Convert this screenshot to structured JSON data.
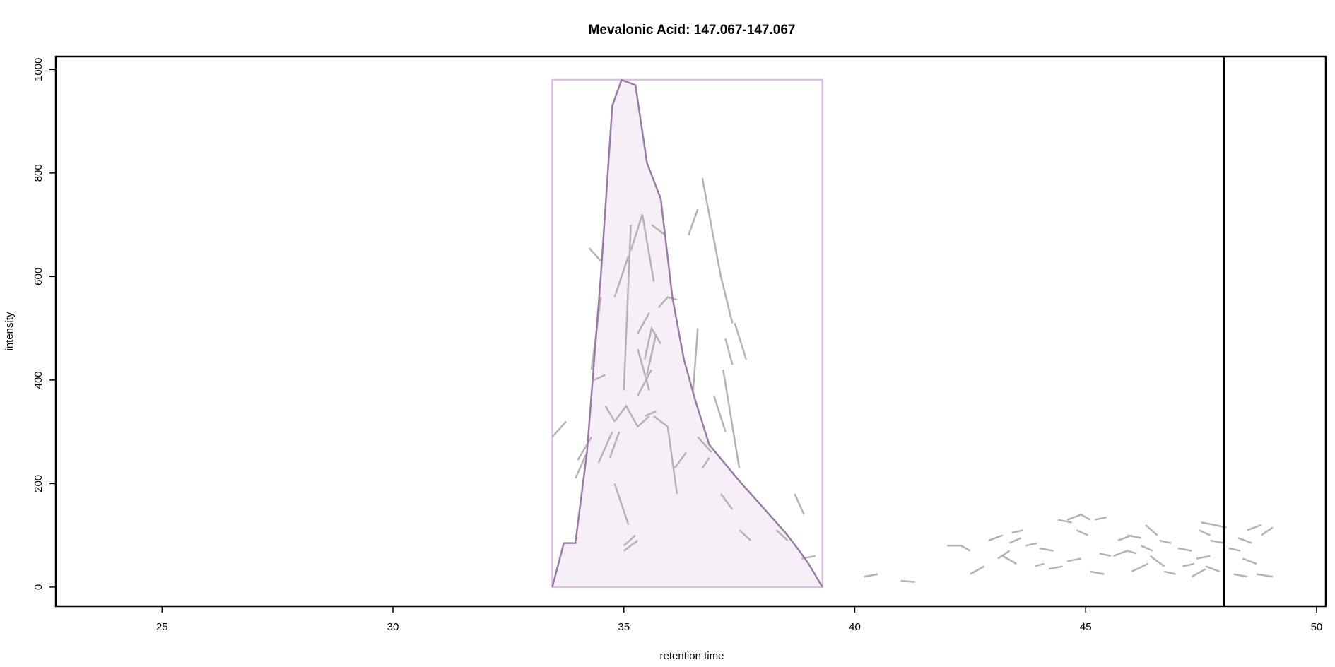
{
  "chart_data": {
    "type": "line",
    "title": "Mevalonic Acid: 147.067-147.067",
    "xlabel": "retention time",
    "ylabel": "intensity",
    "xlim": [
      22.7,
      50.2
    ],
    "ylim": [
      -37,
      1025
    ],
    "x_ticks": [
      25,
      30,
      35,
      40,
      45,
      50
    ],
    "y_ticks": [
      0,
      200,
      400,
      600,
      800,
      1000
    ],
    "grid": false,
    "legend": "none",
    "colors": {
      "peak_line": "#9c7aa6",
      "peak_fill": "#f6eff8",
      "peak_box": "#d9bfe0",
      "segments": "#b3b3b3",
      "marker_line": "#000000"
    },
    "vertical_marker_x": 48.0,
    "peak_box": {
      "x": [
        33.45,
        39.3
      ],
      "y": [
        0,
        980
      ]
    },
    "peak_polygon": [
      [
        33.45,
        0
      ],
      [
        33.7,
        85
      ],
      [
        33.95,
        85
      ],
      [
        34.2,
        260
      ],
      [
        34.5,
        600
      ],
      [
        34.75,
        930
      ],
      [
        34.95,
        980
      ],
      [
        35.25,
        970
      ],
      [
        35.5,
        820
      ],
      [
        35.8,
        750
      ],
      [
        36.05,
        560
      ],
      [
        36.3,
        440
      ],
      [
        36.55,
        360
      ],
      [
        36.85,
        275
      ],
      [
        37.5,
        205
      ],
      [
        38.2,
        135
      ],
      [
        38.5,
        105
      ],
      [
        38.8,
        70
      ],
      [
        39.0,
        45
      ],
      [
        39.3,
        0
      ]
    ],
    "series": [
      {
        "values": [
          [
            33.45,
            290
          ],
          [
            33.75,
            320
          ]
        ]
      },
      {
        "values": [
          [
            33.95,
            210
          ],
          [
            34.2,
            260
          ]
        ]
      },
      {
        "values": [
          [
            34.0,
            245
          ],
          [
            34.3,
            290
          ]
        ]
      },
      {
        "values": [
          [
            34.35,
            400
          ],
          [
            34.6,
            410
          ]
        ]
      },
      {
        "values": [
          [
            34.25,
            655
          ],
          [
            34.5,
            630
          ]
        ]
      },
      {
        "values": [
          [
            34.3,
            420
          ],
          [
            34.5,
            560
          ]
        ]
      },
      {
        "values": [
          [
            34.45,
            240
          ],
          [
            34.75,
            300
          ]
        ]
      },
      {
        "values": [
          [
            34.6,
            350
          ],
          [
            34.8,
            320
          ]
        ]
      },
      {
        "values": [
          [
            34.8,
            320
          ],
          [
            35.05,
            350
          ],
          [
            35.3,
            310
          ],
          [
            35.55,
            330
          ]
        ]
      },
      {
        "values": [
          [
            34.7,
            250
          ],
          [
            34.9,
            300
          ]
        ]
      },
      {
        "values": [
          [
            34.8,
            560
          ],
          [
            35.1,
            640
          ]
        ]
      },
      {
        "values": [
          [
            35.0,
            380
          ],
          [
            35.15,
            700
          ]
        ]
      },
      {
        "values": [
          [
            35.15,
            650
          ],
          [
            35.4,
            720
          ],
          [
            35.65,
            590
          ]
        ]
      },
      {
        "values": [
          [
            34.8,
            200
          ],
          [
            35.1,
            120
          ]
        ]
      },
      {
        "values": [
          [
            35.0,
            80
          ],
          [
            35.25,
            100
          ]
        ]
      },
      {
        "values": [
          [
            35.0,
            70
          ],
          [
            35.3,
            90
          ]
        ]
      },
      {
        "values": [
          [
            35.3,
            490
          ],
          [
            35.55,
            530
          ]
        ]
      },
      {
        "values": [
          [
            35.3,
            460
          ],
          [
            35.55,
            380
          ]
        ]
      },
      {
        "values": [
          [
            35.45,
            330
          ],
          [
            35.7,
            340
          ]
        ]
      },
      {
        "values": [
          [
            35.45,
            440
          ],
          [
            35.6,
            500
          ],
          [
            35.8,
            470
          ]
        ]
      },
      {
        "values": [
          [
            35.5,
            410
          ],
          [
            35.7,
            490
          ]
        ]
      },
      {
        "values": [
          [
            35.6,
            700
          ],
          [
            35.9,
            680
          ]
        ]
      },
      {
        "values": [
          [
            35.65,
            330
          ],
          [
            35.95,
            310
          ],
          [
            36.15,
            180
          ]
        ]
      },
      {
        "values": [
          [
            35.75,
            540
          ],
          [
            35.95,
            560
          ],
          [
            36.15,
            555
          ]
        ]
      },
      {
        "values": [
          [
            35.3,
            370
          ],
          [
            35.6,
            420
          ]
        ]
      },
      {
        "values": [
          [
            36.1,
            230
          ],
          [
            36.35,
            260
          ]
        ]
      },
      {
        "values": [
          [
            36.4,
            680
          ],
          [
            36.6,
            730
          ]
        ]
      },
      {
        "values": [
          [
            36.5,
            380
          ],
          [
            36.6,
            500
          ]
        ]
      },
      {
        "values": [
          [
            36.6,
            290
          ],
          [
            36.9,
            260
          ]
        ]
      },
      {
        "values": [
          [
            36.7,
            230
          ],
          [
            36.85,
            250
          ]
        ]
      },
      {
        "values": [
          [
            36.7,
            790
          ],
          [
            37.1,
            600
          ],
          [
            37.35,
            510
          ]
        ]
      },
      {
        "values": [
          [
            36.95,
            370
          ],
          [
            37.2,
            300
          ]
        ]
      },
      {
        "values": [
          [
            37.2,
            480
          ],
          [
            37.35,
            430
          ]
        ]
      },
      {
        "values": [
          [
            37.4,
            510
          ],
          [
            37.65,
            440
          ]
        ]
      },
      {
        "values": [
          [
            37.15,
            420
          ],
          [
            37.5,
            230
          ]
        ]
      },
      {
        "values": [
          [
            37.1,
            180
          ],
          [
            37.35,
            150
          ]
        ]
      },
      {
        "values": [
          [
            37.5,
            110
          ],
          [
            37.75,
            90
          ]
        ]
      },
      {
        "values": [
          [
            38.3,
            110
          ],
          [
            38.55,
            90
          ]
        ]
      },
      {
        "values": [
          [
            38.7,
            180
          ],
          [
            38.9,
            140
          ]
        ]
      },
      {
        "values": [
          [
            38.85,
            55
          ],
          [
            39.15,
            60
          ]
        ]
      },
      {
        "values": [
          [
            40.2,
            20
          ],
          [
            40.5,
            25
          ]
        ]
      },
      {
        "values": [
          [
            41.0,
            12
          ],
          [
            41.3,
            10
          ]
        ]
      },
      {
        "values": [
          [
            42.0,
            80
          ],
          [
            42.3,
            80
          ],
          [
            42.5,
            70
          ]
        ]
      },
      {
        "values": [
          [
            42.5,
            25
          ],
          [
            42.8,
            40
          ]
        ]
      },
      {
        "values": [
          [
            42.9,
            90
          ],
          [
            43.2,
            100
          ]
        ]
      },
      {
        "values": [
          [
            43.1,
            55
          ],
          [
            43.35,
            70
          ]
        ]
      },
      {
        "values": [
          [
            43.2,
            60
          ],
          [
            43.5,
            45
          ]
        ]
      },
      {
        "values": [
          [
            43.35,
            85
          ],
          [
            43.6,
            95
          ]
        ]
      },
      {
        "values": [
          [
            43.4,
            105
          ],
          [
            43.65,
            110
          ]
        ]
      },
      {
        "values": [
          [
            43.7,
            80
          ],
          [
            43.95,
            85
          ]
        ]
      },
      {
        "values": [
          [
            43.9,
            40
          ],
          [
            44.1,
            45
          ]
        ]
      },
      {
        "values": [
          [
            44.0,
            75
          ],
          [
            44.3,
            70
          ]
        ]
      },
      {
        "values": [
          [
            44.2,
            35
          ],
          [
            44.5,
            40
          ]
        ]
      },
      {
        "values": [
          [
            44.4,
            130
          ],
          [
            44.7,
            125
          ]
        ]
      },
      {
        "values": [
          [
            44.6,
            130
          ],
          [
            44.9,
            140
          ],
          [
            45.1,
            130
          ]
        ]
      },
      {
        "values": [
          [
            44.6,
            50
          ],
          [
            44.9,
            55
          ]
        ]
      },
      {
        "values": [
          [
            44.8,
            110
          ],
          [
            45.05,
            100
          ]
        ]
      },
      {
        "values": [
          [
            45.1,
            30
          ],
          [
            45.4,
            25
          ]
        ]
      },
      {
        "values": [
          [
            45.2,
            130
          ],
          [
            45.45,
            135
          ]
        ]
      },
      {
        "values": [
          [
            45.3,
            65
          ],
          [
            45.55,
            60
          ]
        ]
      },
      {
        "values": [
          [
            45.6,
            60
          ],
          [
            45.9,
            70
          ],
          [
            46.1,
            65
          ]
        ]
      },
      {
        "values": [
          [
            45.7,
            90
          ],
          [
            46.0,
            100
          ]
        ]
      },
      {
        "values": [
          [
            45.9,
            100
          ],
          [
            46.2,
            95
          ]
        ]
      },
      {
        "values": [
          [
            46.0,
            30
          ],
          [
            46.35,
            45
          ]
        ]
      },
      {
        "values": [
          [
            46.2,
            80
          ],
          [
            46.45,
            70
          ]
        ]
      },
      {
        "values": [
          [
            46.3,
            120
          ],
          [
            46.55,
            100
          ]
        ]
      },
      {
        "values": [
          [
            46.4,
            60
          ],
          [
            46.7,
            40
          ]
        ]
      },
      {
        "values": [
          [
            46.6,
            90
          ],
          [
            46.85,
            85
          ]
        ]
      },
      {
        "values": [
          [
            46.7,
            30
          ],
          [
            46.95,
            25
          ]
        ]
      },
      {
        "values": [
          [
            47.0,
            75
          ],
          [
            47.3,
            70
          ]
        ]
      },
      {
        "values": [
          [
            47.1,
            40
          ],
          [
            47.35,
            45
          ]
        ]
      },
      {
        "values": [
          [
            47.3,
            20
          ],
          [
            47.6,
            35
          ]
        ]
      },
      {
        "values": [
          [
            47.4,
            55
          ],
          [
            47.7,
            60
          ]
        ]
      },
      {
        "values": [
          [
            47.45,
            110
          ],
          [
            47.7,
            100
          ]
        ]
      },
      {
        "values": [
          [
            47.5,
            125
          ],
          [
            47.8,
            120
          ],
          [
            48.05,
            115
          ]
        ]
      },
      {
        "values": [
          [
            47.6,
            40
          ],
          [
            47.9,
            30
          ]
        ]
      },
      {
        "values": [
          [
            47.7,
            90
          ],
          [
            48.0,
            85
          ]
        ]
      },
      {
        "values": [
          [
            48.1,
            75
          ],
          [
            48.35,
            70
          ]
        ]
      },
      {
        "values": [
          [
            48.2,
            25
          ],
          [
            48.5,
            20
          ]
        ]
      },
      {
        "values": [
          [
            48.3,
            95
          ],
          [
            48.6,
            85
          ]
        ]
      },
      {
        "values": [
          [
            48.4,
            55
          ],
          [
            48.7,
            45
          ]
        ]
      },
      {
        "values": [
          [
            48.5,
            110
          ],
          [
            48.8,
            120
          ]
        ]
      },
      {
        "values": [
          [
            48.7,
            25
          ],
          [
            49.05,
            20
          ]
        ]
      },
      {
        "values": [
          [
            48.8,
            100
          ],
          [
            49.05,
            115
          ]
        ]
      }
    ]
  }
}
